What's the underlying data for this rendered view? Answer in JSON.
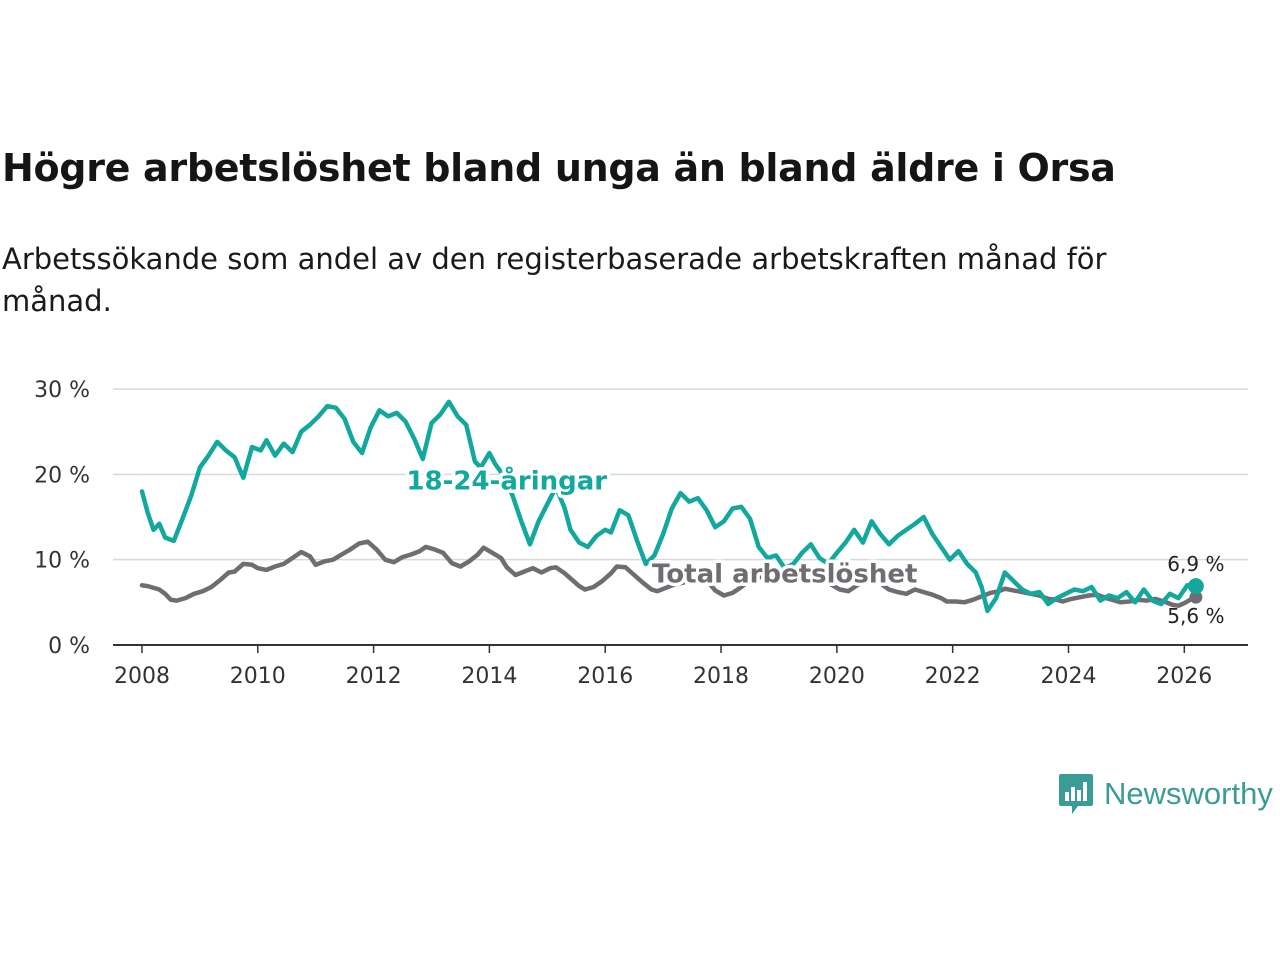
{
  "title": "Högre arbetslöshet bland unga än bland äldre i Orsa",
  "subtitle": "Arbetssökande som andel av den registerbaserade arbetskraften månad för månad.",
  "brand": {
    "name": "Newsworthy",
    "color": "#3b9c97",
    "icon": "newsworthy-logo-icon"
  },
  "chart_data": {
    "type": "line",
    "title": "Högre arbetslöshet bland unga än bland äldre i Orsa",
    "xlabel": "",
    "ylabel": "",
    "ylim": [
      0,
      30
    ],
    "xlim": [
      2007.5,
      2027.1
    ],
    "grid": true,
    "y_ticks": [
      0,
      10,
      20,
      30
    ],
    "y_tick_labels": [
      "0 %",
      "10 %",
      "20 %",
      "30 %"
    ],
    "x_ticks": [
      2008,
      2010,
      2012,
      2014,
      2016,
      2018,
      2020,
      2022,
      2024,
      2026
    ],
    "x_tick_labels": [
      "2008",
      "2010",
      "2012",
      "2014",
      "2016",
      "2018",
      "2020",
      "2022",
      "2024",
      "2026"
    ],
    "series": [
      {
        "name": "Total arbetslöshet",
        "color": "#6e6e72",
        "end_label": "5,6 %",
        "points": [
          [
            2008.0,
            7.0
          ],
          [
            2008.1,
            6.9
          ],
          [
            2008.3,
            6.5
          ],
          [
            2008.4,
            6.0
          ],
          [
            2008.5,
            5.3
          ],
          [
            2008.6,
            5.2
          ],
          [
            2008.75,
            5.5
          ],
          [
            2008.9,
            6.0
          ],
          [
            2009.05,
            6.3
          ],
          [
            2009.2,
            6.8
          ],
          [
            2009.35,
            7.6
          ],
          [
            2009.5,
            8.5
          ],
          [
            2009.6,
            8.6
          ],
          [
            2009.75,
            9.5
          ],
          [
            2009.9,
            9.4
          ],
          [
            2010.0,
            9.0
          ],
          [
            2010.15,
            8.8
          ],
          [
            2010.3,
            9.2
          ],
          [
            2010.45,
            9.5
          ],
          [
            2010.6,
            10.2
          ],
          [
            2010.75,
            10.9
          ],
          [
            2010.9,
            10.4
          ],
          [
            2011.0,
            9.4
          ],
          [
            2011.15,
            9.8
          ],
          [
            2011.3,
            10.0
          ],
          [
            2011.45,
            10.6
          ],
          [
            2011.6,
            11.2
          ],
          [
            2011.75,
            11.9
          ],
          [
            2011.9,
            12.1
          ],
          [
            2012.05,
            11.2
          ],
          [
            2012.2,
            10.0
          ],
          [
            2012.35,
            9.7
          ],
          [
            2012.5,
            10.3
          ],
          [
            2012.65,
            10.6
          ],
          [
            2012.8,
            11.0
          ],
          [
            2012.9,
            11.5
          ],
          [
            2013.05,
            11.2
          ],
          [
            2013.2,
            10.8
          ],
          [
            2013.35,
            9.6
          ],
          [
            2013.5,
            9.2
          ],
          [
            2013.65,
            9.8
          ],
          [
            2013.8,
            10.6
          ],
          [
            2013.9,
            11.4
          ],
          [
            2014.05,
            10.8
          ],
          [
            2014.2,
            10.2
          ],
          [
            2014.3,
            9.1
          ],
          [
            2014.45,
            8.2
          ],
          [
            2014.6,
            8.6
          ],
          [
            2014.75,
            9.0
          ],
          [
            2014.9,
            8.5
          ],
          [
            2015.05,
            9.0
          ],
          [
            2015.15,
            9.1
          ],
          [
            2015.3,
            8.4
          ],
          [
            2015.4,
            7.8
          ],
          [
            2015.55,
            6.9
          ],
          [
            2015.65,
            6.5
          ],
          [
            2015.8,
            6.8
          ],
          [
            2015.95,
            7.5
          ],
          [
            2016.1,
            8.4
          ],
          [
            2016.2,
            9.2
          ],
          [
            2016.35,
            9.1
          ],
          [
            2016.5,
            8.2
          ],
          [
            2016.65,
            7.3
          ],
          [
            2016.8,
            6.5
          ],
          [
            2016.9,
            6.3
          ],
          [
            2017.05,
            6.7
          ],
          [
            2017.2,
            7.1
          ],
          [
            2017.35,
            7.3
          ],
          [
            2017.5,
            8.2
          ],
          [
            2017.65,
            7.8
          ],
          [
            2017.8,
            7.2
          ],
          [
            2017.9,
            6.4
          ],
          [
            2018.05,
            5.8
          ],
          [
            2018.2,
            6.1
          ],
          [
            2018.35,
            6.8
          ],
          [
            2018.5,
            7.6
          ],
          [
            2018.65,
            7.9
          ],
          [
            2018.8,
            8.2
          ],
          [
            2018.9,
            8.5
          ],
          [
            2019.05,
            8.4
          ],
          [
            2019.2,
            8.3
          ],
          [
            2019.35,
            8.6
          ],
          [
            2019.5,
            8.5
          ],
          [
            2019.65,
            8.1
          ],
          [
            2019.8,
            7.8
          ],
          [
            2019.9,
            7.1
          ],
          [
            2020.05,
            6.5
          ],
          [
            2020.2,
            6.3
          ],
          [
            2020.35,
            7.0
          ],
          [
            2020.5,
            7.4
          ],
          [
            2020.65,
            7.8
          ],
          [
            2020.8,
            7.0
          ],
          [
            2020.9,
            6.5
          ],
          [
            2021.05,
            6.2
          ],
          [
            2021.2,
            6.0
          ],
          [
            2021.35,
            6.5
          ],
          [
            2021.5,
            6.2
          ],
          [
            2021.65,
            5.9
          ],
          [
            2021.8,
            5.5
          ],
          [
            2021.9,
            5.1
          ],
          [
            2022.05,
            5.1
          ],
          [
            2022.2,
            5.0
          ],
          [
            2022.35,
            5.3
          ],
          [
            2022.5,
            5.7
          ],
          [
            2022.65,
            6.1
          ],
          [
            2022.8,
            6.3
          ],
          [
            2022.9,
            6.6
          ],
          [
            2023.05,
            6.4
          ],
          [
            2023.2,
            6.2
          ],
          [
            2023.35,
            6.0
          ],
          [
            2023.5,
            5.8
          ],
          [
            2023.65,
            5.4
          ],
          [
            2023.8,
            5.3
          ],
          [
            2023.9,
            5.1
          ],
          [
            2024.05,
            5.4
          ],
          [
            2024.2,
            5.6
          ],
          [
            2024.35,
            5.8
          ],
          [
            2024.5,
            5.9
          ],
          [
            2024.65,
            5.5
          ],
          [
            2024.8,
            5.2
          ],
          [
            2024.9,
            5.0
          ],
          [
            2025.05,
            5.1
          ],
          [
            2025.2,
            5.3
          ],
          [
            2025.35,
            5.2
          ],
          [
            2025.5,
            5.4
          ],
          [
            2025.65,
            5.1
          ],
          [
            2025.8,
            4.7
          ],
          [
            2025.9,
            4.6
          ],
          [
            2026.0,
            4.9
          ],
          [
            2026.1,
            5.3
          ],
          [
            2026.2,
            5.6
          ]
        ]
      },
      {
        "name": "18-24-åringar",
        "color": "#13a89e",
        "end_label": "6,9 %",
        "points": [
          [
            2008.0,
            18.0
          ],
          [
            2008.1,
            15.5
          ],
          [
            2008.2,
            13.5
          ],
          [
            2008.3,
            14.2
          ],
          [
            2008.4,
            12.6
          ],
          [
            2008.55,
            12.2
          ],
          [
            2008.7,
            14.8
          ],
          [
            2008.85,
            17.5
          ],
          [
            2009.0,
            20.8
          ],
          [
            2009.15,
            22.2
          ],
          [
            2009.3,
            23.8
          ],
          [
            2009.45,
            22.8
          ],
          [
            2009.6,
            22.0
          ],
          [
            2009.75,
            19.6
          ],
          [
            2009.9,
            23.2
          ],
          [
            2010.05,
            22.8
          ],
          [
            2010.15,
            24.0
          ],
          [
            2010.3,
            22.2
          ],
          [
            2010.45,
            23.6
          ],
          [
            2010.6,
            22.6
          ],
          [
            2010.75,
            25.0
          ],
          [
            2010.9,
            25.8
          ],
          [
            2011.05,
            26.8
          ],
          [
            2011.2,
            28.0
          ],
          [
            2011.35,
            27.8
          ],
          [
            2011.5,
            26.5
          ],
          [
            2011.65,
            23.8
          ],
          [
            2011.8,
            22.5
          ],
          [
            2011.95,
            25.5
          ],
          [
            2012.1,
            27.5
          ],
          [
            2012.25,
            26.8
          ],
          [
            2012.4,
            27.2
          ],
          [
            2012.55,
            26.2
          ],
          [
            2012.7,
            24.2
          ],
          [
            2012.85,
            21.8
          ],
          [
            2013.0,
            26.0
          ],
          [
            2013.15,
            27.0
          ],
          [
            2013.3,
            28.5
          ],
          [
            2013.45,
            26.8
          ],
          [
            2013.6,
            25.8
          ],
          [
            2013.75,
            21.5
          ],
          [
            2013.85,
            20.8
          ],
          [
            2014.0,
            22.5
          ],
          [
            2014.1,
            21.2
          ],
          [
            2014.25,
            19.8
          ],
          [
            2014.4,
            17.5
          ],
          [
            2014.55,
            14.5
          ],
          [
            2014.7,
            11.8
          ],
          [
            2014.85,
            14.5
          ],
          [
            2015.0,
            16.5
          ],
          [
            2015.15,
            18.5
          ],
          [
            2015.3,
            16.0
          ],
          [
            2015.4,
            13.5
          ],
          [
            2015.55,
            12.0
          ],
          [
            2015.7,
            11.5
          ],
          [
            2015.85,
            12.8
          ],
          [
            2016.0,
            13.5
          ],
          [
            2016.1,
            13.2
          ],
          [
            2016.25,
            15.8
          ],
          [
            2016.4,
            15.2
          ],
          [
            2016.55,
            12.2
          ],
          [
            2016.7,
            9.5
          ],
          [
            2016.85,
            10.5
          ],
          [
            2017.0,
            13.0
          ],
          [
            2017.15,
            16.0
          ],
          [
            2017.3,
            17.8
          ],
          [
            2017.45,
            16.8
          ],
          [
            2017.6,
            17.2
          ],
          [
            2017.75,
            15.8
          ],
          [
            2017.9,
            13.8
          ],
          [
            2018.05,
            14.5
          ],
          [
            2018.2,
            16.0
          ],
          [
            2018.35,
            16.2
          ],
          [
            2018.5,
            14.8
          ],
          [
            2018.65,
            11.5
          ],
          [
            2018.8,
            10.2
          ],
          [
            2018.95,
            10.5
          ],
          [
            2019.1,
            9.0
          ],
          [
            2019.25,
            9.5
          ],
          [
            2019.4,
            10.8
          ],
          [
            2019.55,
            11.8
          ],
          [
            2019.7,
            10.2
          ],
          [
            2019.85,
            9.5
          ],
          [
            2020.0,
            10.8
          ],
          [
            2020.15,
            12.0
          ],
          [
            2020.3,
            13.5
          ],
          [
            2020.45,
            12.0
          ],
          [
            2020.6,
            14.5
          ],
          [
            2020.75,
            13.0
          ],
          [
            2020.9,
            11.8
          ],
          [
            2021.05,
            12.8
          ],
          [
            2021.2,
            13.5
          ],
          [
            2021.35,
            14.2
          ],
          [
            2021.5,
            15.0
          ],
          [
            2021.65,
            13.0
          ],
          [
            2021.8,
            11.5
          ],
          [
            2021.95,
            10.0
          ],
          [
            2022.1,
            11.0
          ],
          [
            2022.25,
            9.5
          ],
          [
            2022.4,
            8.5
          ],
          [
            2022.5,
            6.8
          ],
          [
            2022.6,
            4.0
          ],
          [
            2022.75,
            5.5
          ],
          [
            2022.9,
            8.5
          ],
          [
            2023.05,
            7.5
          ],
          [
            2023.2,
            6.5
          ],
          [
            2023.35,
            6.0
          ],
          [
            2023.5,
            6.2
          ],
          [
            2023.65,
            4.8
          ],
          [
            2023.8,
            5.5
          ],
          [
            2023.95,
            6.0
          ],
          [
            2024.1,
            6.5
          ],
          [
            2024.25,
            6.3
          ],
          [
            2024.4,
            6.8
          ],
          [
            2024.55,
            5.2
          ],
          [
            2024.7,
            5.8
          ],
          [
            2024.85,
            5.5
          ],
          [
            2025.0,
            6.2
          ],
          [
            2025.15,
            5.0
          ],
          [
            2025.3,
            6.5
          ],
          [
            2025.45,
            5.2
          ],
          [
            2025.6,
            4.8
          ],
          [
            2025.75,
            6.0
          ],
          [
            2025.9,
            5.5
          ],
          [
            2026.05,
            7.0
          ],
          [
            2026.2,
            6.9
          ]
        ]
      }
    ],
    "annotations": [
      {
        "series": "18-24-åringar",
        "text": "18-24-åringar",
        "x": 2014.3,
        "y": 18.2
      },
      {
        "series": "Total arbetslöshet",
        "text": "Total arbetslöshet",
        "x": 2019.1,
        "y": 7.3
      }
    ]
  }
}
